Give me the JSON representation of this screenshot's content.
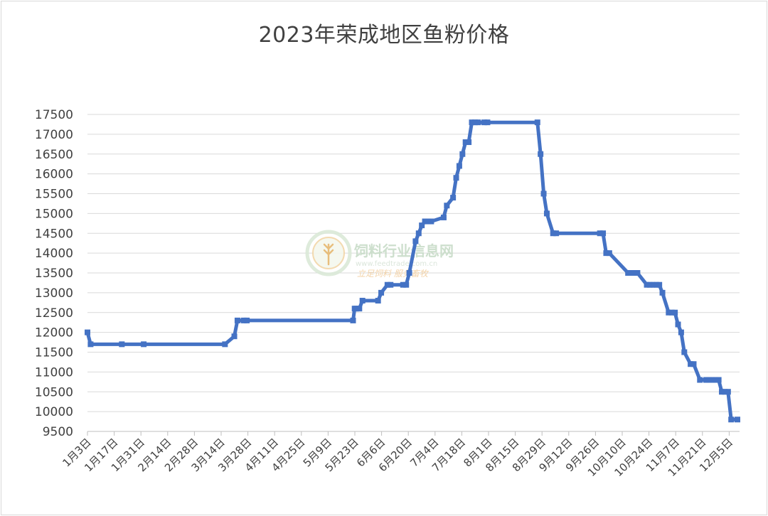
{
  "chart_data": {
    "type": "line",
    "title": "2023年荣成地区鱼粉价格",
    "xlabel": "",
    "ylabel": "",
    "ylim": [
      9500,
      17500
    ],
    "yticks": [
      9500,
      10000,
      10500,
      11000,
      11500,
      12000,
      12500,
      13000,
      13500,
      14000,
      14500,
      15000,
      15500,
      16000,
      16500,
      17000,
      17500
    ],
    "xtick_labels": [
      "1月3日",
      "1月17日",
      "1月31日",
      "2月14日",
      "2月28日",
      "3月14日",
      "3月28日",
      "4月11日",
      "4月25日",
      "5月9日",
      "5月23日",
      "6月6日",
      "6月20日",
      "7月4日",
      "7月18日",
      "8月1日",
      "8月15日",
      "8月29日",
      "9月12日",
      "9月26日",
      "10月10日",
      "10月24日",
      "11月7日",
      "11月21日",
      "12月5日"
    ],
    "grid": true,
    "legend": "none",
    "line_color": "#4472C4",
    "series": [
      {
        "x": [
          0,
          1,
          11,
          18,
          44,
          47,
          48,
          50,
          51,
          85,
          85.5,
          86,
          87,
          88,
          93,
          94,
          96,
          97,
          101,
          102,
          103,
          105,
          106,
          107,
          108,
          109,
          110,
          114,
          115,
          117,
          118,
          119,
          120,
          121,
          122,
          123,
          124,
          125,
          127,
          128,
          144,
          145,
          146,
          147,
          149,
          150,
          164,
          165,
          166,
          167,
          173,
          174,
          175,
          176,
          179,
          180,
          181,
          182,
          183,
          184,
          186,
          187,
          188,
          189,
          190,
          191,
          193,
          194,
          196,
          198,
          199,
          200,
          201,
          202,
          203,
          204,
          205,
          206,
          208
        ],
        "y": [
          12000,
          11700,
          11700,
          11700,
          11700,
          11900,
          12300,
          12300,
          12300,
          12300,
          12600,
          12600,
          12600,
          12800,
          12800,
          13000,
          13200,
          13200,
          13200,
          13200,
          13500,
          14300,
          14500,
          14700,
          14800,
          14800,
          14800,
          14900,
          15200,
          15400,
          15900,
          16200,
          16500,
          16800,
          16800,
          17300,
          17300,
          17300,
          17300,
          17300,
          17300,
          16500,
          15500,
          15000,
          14500,
          14500,
          14500,
          14500,
          14000,
          14000,
          13500,
          13500,
          13500,
          13500,
          13200,
          13200,
          13200,
          13200,
          13200,
          13000,
          12500,
          12500,
          12500,
          12200,
          12000,
          11500,
          11200,
          11200,
          10800,
          10800,
          10800,
          10800,
          10800,
          10800,
          10500,
          10500,
          10500,
          9800,
          9800
        ]
      }
    ]
  },
  "watermark": {
    "name": "饲料行业信息网",
    "url": "www.feedtrade.com.cn",
    "slogan": "立足饲料  服务畜牧",
    "logo_icon": "wheat-leaf-logo-icon"
  }
}
